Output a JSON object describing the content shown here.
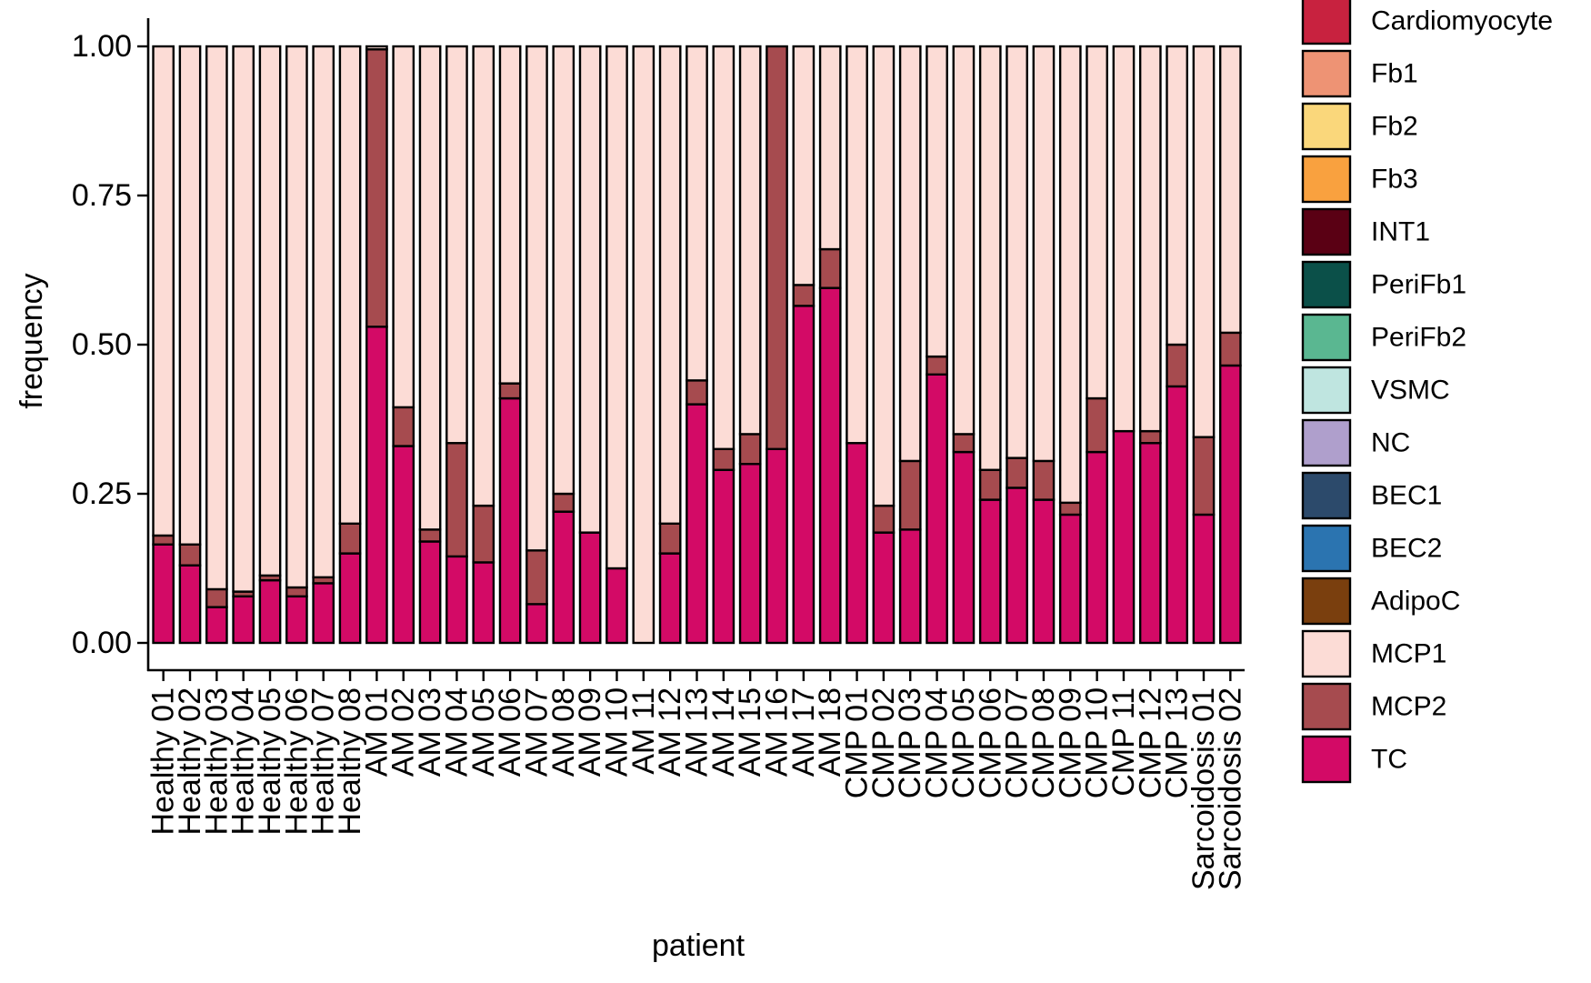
{
  "chart_data": {
    "type": "bar",
    "stacked": true,
    "xlabel": "patient",
    "ylabel": "frequency",
    "ylim": [
      0,
      1
    ],
    "y_ticks": [
      "0.00",
      "0.25",
      "0.50",
      "0.75",
      "1.00"
    ],
    "legend_position": "right",
    "categories": [
      "Healthy 01",
      "Healthy 02",
      "Healthy 03",
      "Healthy 04",
      "Healthy 05",
      "Healthy 06",
      "Healthy 07",
      "Healthy 08",
      "AM 01",
      "AM 02",
      "AM 03",
      "AM 04",
      "AM 05",
      "AM 06",
      "AM 07",
      "AM 08",
      "AM 09",
      "AM 10",
      "AM 11",
      "AM 12",
      "AM 13",
      "AM 14",
      "AM 15",
      "AM 16",
      "AM 17",
      "AM 18",
      "CMP 01",
      "CMP 02",
      "CMP 03",
      "CMP 04",
      "CMP 05",
      "CMP 06",
      "CMP 07",
      "CMP 08",
      "CMP 09",
      "CMP 10",
      "CMP 11",
      "CMP 12",
      "CMP 13",
      "Sarcoidosis 01",
      "Sarcoidosis 02"
    ],
    "legend": [
      {
        "name": "Cardiomyocyte",
        "color": "#C8223F"
      },
      {
        "name": "Fb1",
        "color": "#EE9374"
      },
      {
        "name": "Fb2",
        "color": "#FAD77B"
      },
      {
        "name": "Fb3",
        "color": "#F9A13F"
      },
      {
        "name": "INT1",
        "color": "#5A0014"
      },
      {
        "name": "PeriFb1",
        "color": "#0B5049"
      },
      {
        "name": "PeriFb2",
        "color": "#5AB791"
      },
      {
        "name": "VSMC",
        "color": "#BFE5E0"
      },
      {
        "name": "NC",
        "color": "#AF9FCC"
      },
      {
        "name": "BEC1",
        "color": "#2C4A6B"
      },
      {
        "name": "BEC2",
        "color": "#2B74B0"
      },
      {
        "name": "AdipoC",
        "color": "#7A3F0E"
      },
      {
        "name": "MCP1",
        "color": "#FCDCD6"
      },
      {
        "name": "MCP2",
        "color": "#A64B4F"
      },
      {
        "name": "TC",
        "color": "#D30A66"
      }
    ],
    "series": [
      {
        "name": "TC",
        "color": "#D30A66",
        "values": [
          0.165,
          0.13,
          0.06,
          0.078,
          0.105,
          0.078,
          0.1,
          0.15,
          0.53,
          0.33,
          0.17,
          0.145,
          0.135,
          0.41,
          0.065,
          0.22,
          0.185,
          0.125,
          0.0,
          0.15,
          0.4,
          0.29,
          0.3,
          0.325,
          0.565,
          0.595,
          0.335,
          0.185,
          0.19,
          0.45,
          0.32,
          0.24,
          0.26,
          0.24,
          0.215,
          0.32,
          0.355,
          0.335,
          0.43,
          0.215,
          0.465
        ]
      },
      {
        "name": "MCP2",
        "color": "#A64B4F",
        "values": [
          0.015,
          0.035,
          0.03,
          0.008,
          0.008,
          0.015,
          0.01,
          0.05,
          0.465,
          0.065,
          0.02,
          0.19,
          0.095,
          0.025,
          0.09,
          0.03,
          0.0,
          0.0,
          0.0,
          0.05,
          0.04,
          0.035,
          0.05,
          0.675,
          0.035,
          0.065,
          0.0,
          0.045,
          0.115,
          0.03,
          0.03,
          0.05,
          0.05,
          0.065,
          0.02,
          0.09,
          0.0,
          0.02,
          0.07,
          0.13,
          0.055
        ]
      },
      {
        "name": "MCP1",
        "color": "#FCDCD6",
        "values": [
          0.82,
          0.835,
          0.91,
          0.914,
          0.887,
          0.907,
          0.89,
          0.8,
          0.005,
          0.605,
          0.81,
          0.665,
          0.77,
          0.565,
          0.845,
          0.75,
          0.815,
          0.875,
          1.0,
          0.8,
          0.56,
          0.675,
          0.65,
          0.0,
          0.4,
          0.34,
          0.665,
          0.77,
          0.695,
          0.52,
          0.65,
          0.71,
          0.69,
          0.695,
          0.765,
          0.59,
          0.645,
          0.645,
          0.5,
          0.655,
          0.48
        ]
      }
    ]
  }
}
